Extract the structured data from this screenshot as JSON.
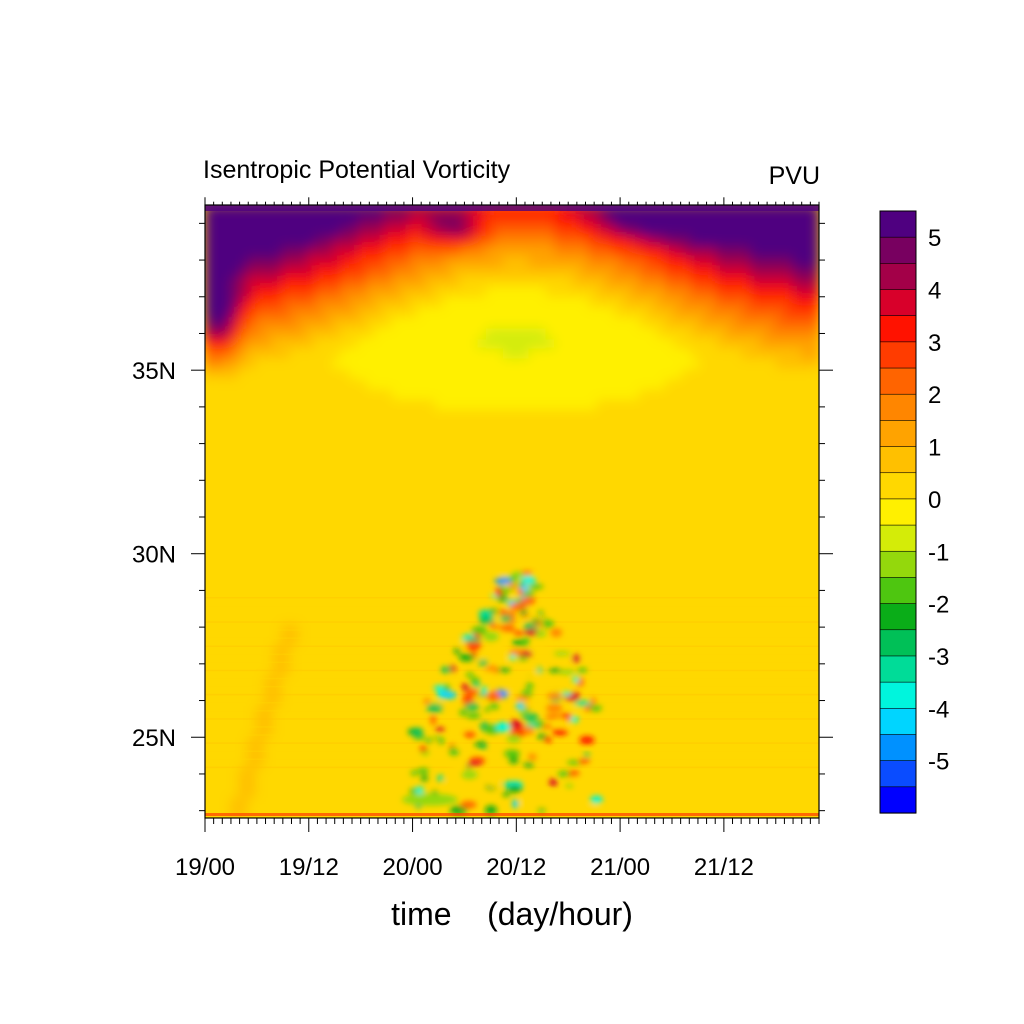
{
  "chart_data": {
    "type": "heatmap",
    "title": "Isentropic Potential Vorticity",
    "units": "PVU",
    "xlabel": "time    (day/hour)",
    "ylabel": "",
    "x_ticks": [
      "19/00",
      "19/12",
      "20/00",
      "20/12",
      "21/00",
      "21/12"
    ],
    "x_range_hours": [
      0,
      71
    ],
    "y_ticks": [
      "25N",
      "30N",
      "35N"
    ],
    "y_tick_values": [
      25,
      30,
      35
    ],
    "y_range": [
      22.8,
      39.5
    ],
    "colorbar": {
      "labels": [
        "5",
        "4",
        "3",
        "2",
        "1",
        "0",
        "-1",
        "-2",
        "-3",
        "-4",
        "-5"
      ],
      "levels": [
        -5.5,
        -5,
        -4.5,
        -4,
        -3.5,
        -3,
        -2.5,
        -2,
        -1.5,
        -1,
        -0.5,
        0,
        0.5,
        1,
        1.5,
        2,
        2.5,
        3,
        3.5,
        4,
        4.5,
        5,
        5.5
      ],
      "colors": [
        "#0000ff",
        "#0a4cff",
        "#0091ff",
        "#00d5ff",
        "#00f5dd",
        "#00dc98",
        "#00c057",
        "#0aad18",
        "#4ec610",
        "#94d80c",
        "#d4ec08",
        "#fff000",
        "#ffd800",
        "#ffc000",
        "#ffa300",
        "#ff8600",
        "#ff6400",
        "#ff3c00",
        "#ff1200",
        "#d8002a",
        "#a30048",
        "#780060",
        "#4f0080"
      ]
    },
    "field_description": "PV high (purple/red) near 37-40N, broad 0-1 PVU yellow mid-latitudes, small-scale negative/positive noise near 23-29N around 20/06-21/00",
    "legend_placement": "right"
  }
}
